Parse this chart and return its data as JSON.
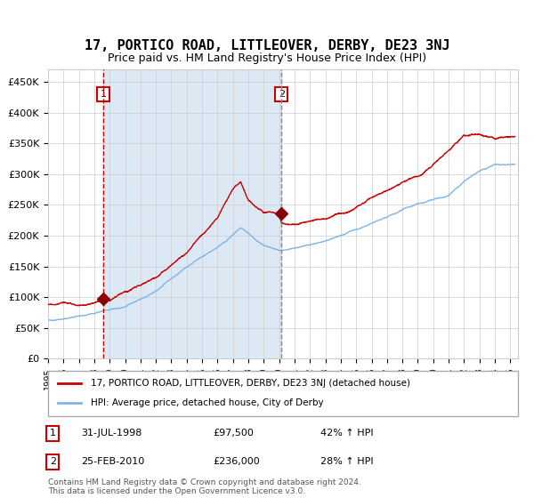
{
  "title": "17, PORTICO ROAD, LITTLEOVER, DERBY, DE23 3NJ",
  "subtitle": "Price paid vs. HM Land Registry's House Price Index (HPI)",
  "title_fontsize": 11,
  "subtitle_fontsize": 9,
  "background_color": "#ffffff",
  "plot_bg_color": "#ffffff",
  "shaded_region_color": "#dce9f5",
  "grid_color": "#cccccc",
  "hpi_line_color": "#7eb6e8",
  "price_line_color": "#cc0000",
  "marker1_date_year": 1998.58,
  "marker1_price": 97500,
  "marker2_date_year": 2010.15,
  "marker2_price": 236000,
  "ylim": [
    0,
    470000
  ],
  "xlim_start": 1995.0,
  "xlim_end": 2025.5,
  "ytick_values": [
    0,
    50000,
    100000,
    150000,
    200000,
    250000,
    300000,
    350000,
    400000,
    450000
  ],
  "ytick_labels": [
    "£0",
    "£50K",
    "£100K",
    "£150K",
    "£200K",
    "£250K",
    "£300K",
    "£350K",
    "£400K",
    "£450K"
  ],
  "xtick_years": [
    1995,
    1996,
    1997,
    1998,
    1999,
    2000,
    2001,
    2002,
    2003,
    2004,
    2005,
    2006,
    2007,
    2008,
    2009,
    2010,
    2011,
    2012,
    2013,
    2014,
    2015,
    2016,
    2017,
    2018,
    2019,
    2020,
    2021,
    2022,
    2023,
    2024,
    2025
  ],
  "legend_label_price": "17, PORTICO ROAD, LITTLEOVER, DERBY, DE23 3NJ (detached house)",
  "legend_label_hpi": "HPI: Average price, detached house, City of Derby",
  "note1_label": "1",
  "note1_date": "31-JUL-1998",
  "note1_price": "£97,500",
  "note1_hpi": "42% ↑ HPI",
  "note2_label": "2",
  "note2_date": "25-FEB-2010",
  "note2_price": "£236,000",
  "note2_hpi": "28% ↑ HPI",
  "footer": "Contains HM Land Registry data © Crown copyright and database right 2024.\nThis data is licensed under the Open Government Licence v3.0."
}
